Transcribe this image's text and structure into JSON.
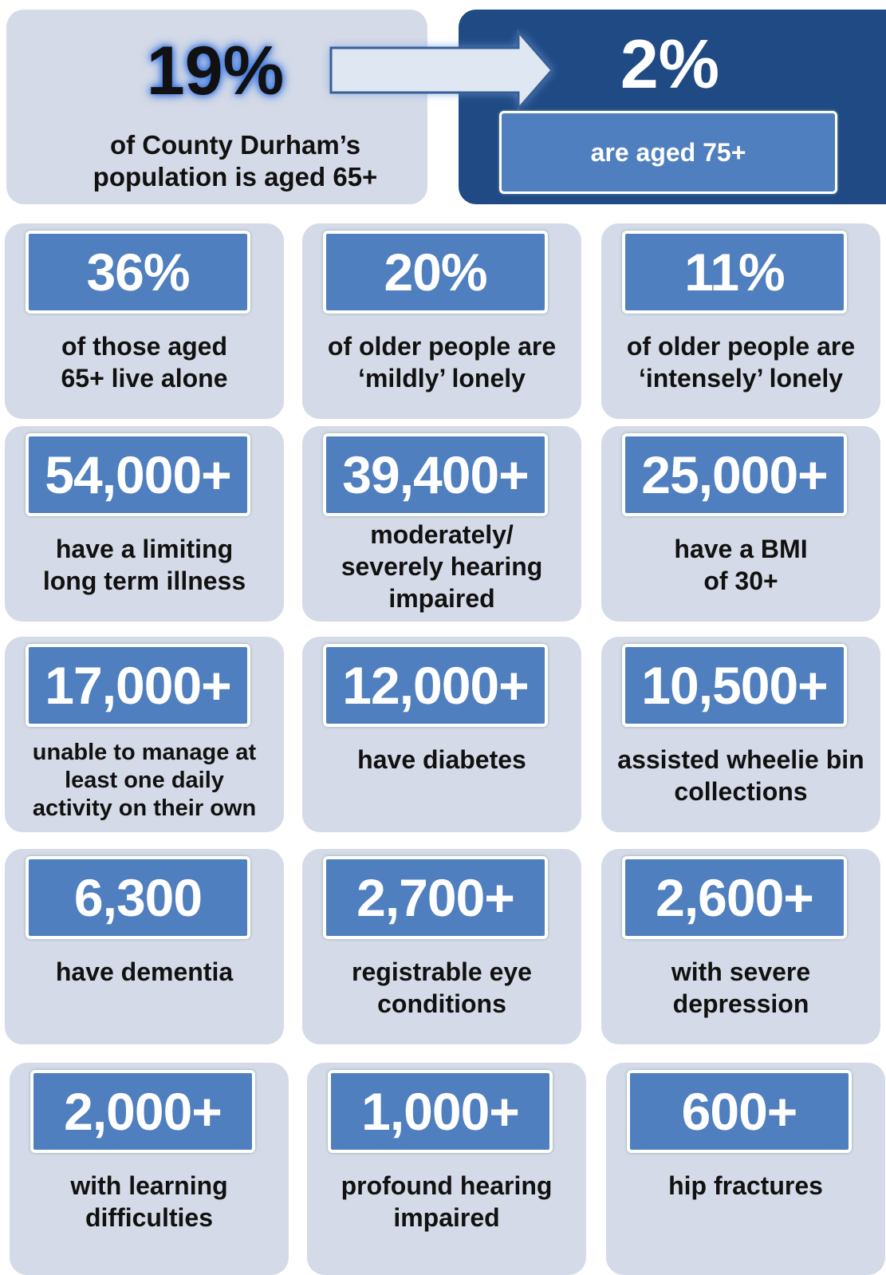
{
  "header": {
    "stat_65": "19%",
    "text_65": [
      "of County Durham’s",
      "population is aged 65+"
    ],
    "stat_75": "2%",
    "text_75": "are aged 75+"
  },
  "cards": [
    {
      "value": "36%",
      "label": [
        "of those aged",
        "65+ live alone"
      ]
    },
    {
      "value": "20%",
      "label": [
        "of older people are",
        "‘mildly’ lonely"
      ]
    },
    {
      "value": "11%",
      "label": [
        "of older people are",
        "‘intensely’ lonely"
      ]
    },
    {
      "value": "54,000+",
      "label": [
        "have a limiting",
        "long term illness"
      ]
    },
    {
      "value": "39,400+",
      "label": [
        "moderately/",
        "severely hearing",
        "impaired"
      ]
    },
    {
      "value": "25,000+",
      "label": [
        "have a BMI",
        "of 30+"
      ]
    },
    {
      "value": "17,000+",
      "label": [
        "unable to manage at",
        "least one daily",
        "activity on their own"
      ]
    },
    {
      "value": "12,000+",
      "label": [
        "have diabetes"
      ]
    },
    {
      "value": "10,500+",
      "label": [
        "assisted wheelie bin",
        "collections"
      ]
    },
    {
      "value": "6,300",
      "label": [
        "have dementia"
      ]
    },
    {
      "value": "2,700+",
      "label": [
        "registrable eye",
        "conditions"
      ]
    },
    {
      "value": "2,600+",
      "label": [
        "with severe",
        "depression"
      ]
    },
    {
      "value": "2,000+",
      "label": [
        "with learning",
        "difficulties"
      ]
    },
    {
      "value": "1,000+",
      "label": [
        "profound hearing",
        "impaired"
      ]
    },
    {
      "value": "600+",
      "label": [
        "hip fractures"
      ]
    }
  ]
}
